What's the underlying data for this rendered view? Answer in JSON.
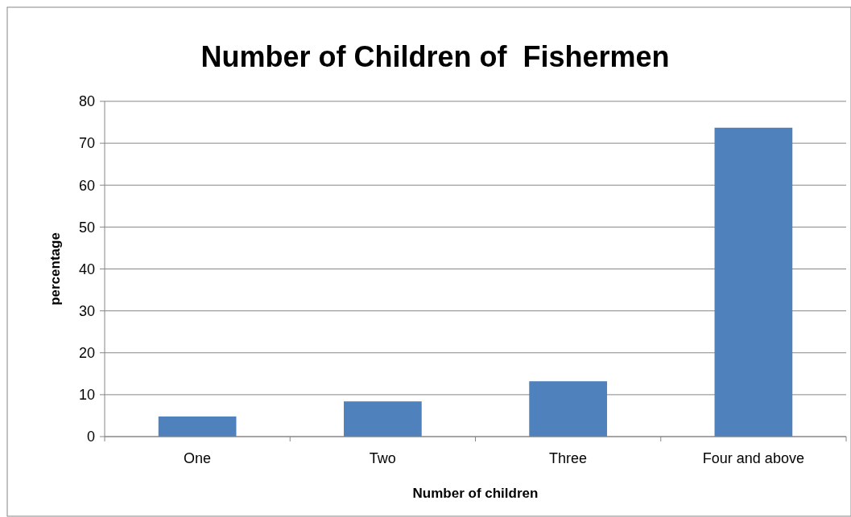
{
  "chart_data": {
    "type": "bar",
    "title": "Number of Children of  Fishermen",
    "xlabel": "Number of children",
    "ylabel": "percentage",
    "categories": [
      "One",
      "Two",
      "Three",
      "Four and above"
    ],
    "values": [
      4.8,
      8.4,
      13.2,
      73.7
    ],
    "color": "#4f81bd",
    "ylim": [
      0,
      80
    ],
    "yticks": [
      0,
      10,
      20,
      30,
      40,
      50,
      60,
      70,
      80
    ],
    "grid": "y"
  }
}
